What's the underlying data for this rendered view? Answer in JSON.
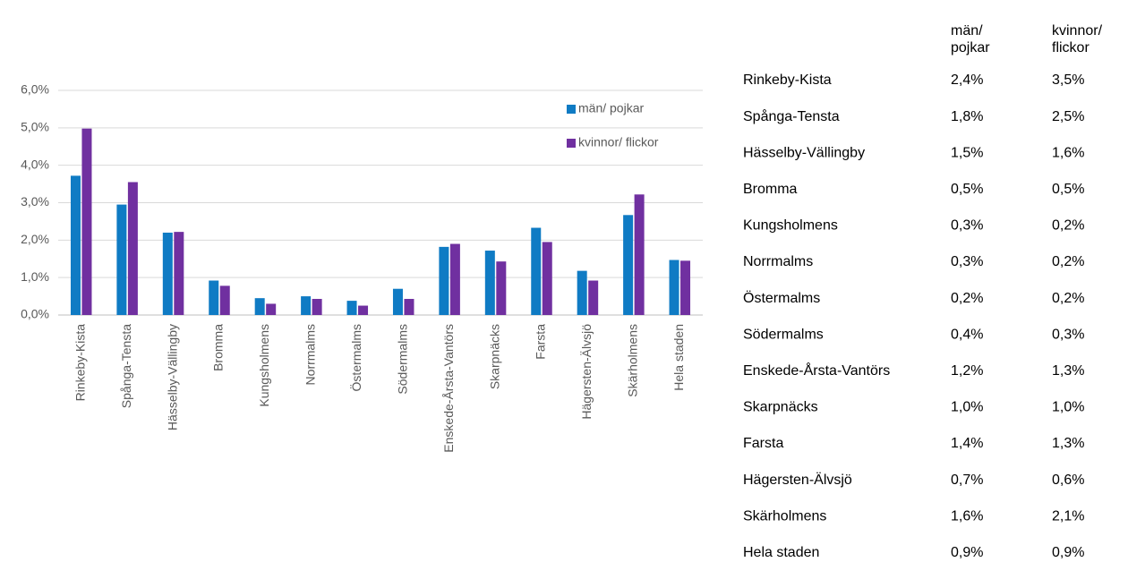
{
  "chart_data": {
    "type": "bar",
    "categories": [
      "Rinkeby-Kista",
      "Spånga-Tensta",
      "Hässelby-Vällingby",
      "Bromma",
      "Kungsholmens",
      "Norrmalms",
      "Östermalms",
      "Södermalms",
      "Enskede-Årsta-Vantörs",
      "Skarpnäcks",
      "Farsta",
      "Hägersten-Älvsjö",
      "Skärholmens",
      "Hela staden"
    ],
    "series": [
      {
        "name": "män/ pojkar",
        "color": "#0f7bc4",
        "values": [
          3.72,
          2.95,
          2.2,
          0.92,
          0.45,
          0.5,
          0.38,
          0.7,
          1.82,
          1.72,
          2.33,
          1.18,
          2.67,
          1.47
        ]
      },
      {
        "name": "kvinnor/ flickor",
        "color": "#7030a0",
        "values": [
          4.98,
          3.55,
          2.22,
          0.78,
          0.3,
          0.43,
          0.25,
          0.43,
          1.9,
          1.43,
          1.95,
          0.92,
          3.22,
          1.45
        ]
      }
    ],
    "ylim": [
      0,
      6
    ],
    "yticks": [
      {
        "value": 0,
        "label": "0,0%"
      },
      {
        "value": 1,
        "label": "1,0%"
      },
      {
        "value": 2,
        "label": "2,0%"
      },
      {
        "value": 3,
        "label": "3,0%"
      },
      {
        "value": 4,
        "label": "4,0%"
      },
      {
        "value": 5,
        "label": "5,0%"
      },
      {
        "value": 6,
        "label": "6,0%"
      }
    ],
    "grid": true,
    "legend": "upper right"
  },
  "table": {
    "columns": [
      [
        "män/",
        "pojkar"
      ],
      [
        "kvinnor/",
        "flickor"
      ]
    ],
    "rows": [
      [
        "Rinkeby-Kista",
        "2,4%",
        "3,5%"
      ],
      [
        "Spånga-Tensta",
        "1,8%",
        "2,5%"
      ],
      [
        "Hässelby-Vällingby",
        "1,5%",
        "1,6%"
      ],
      [
        "Bromma",
        "0,5%",
        "0,5%"
      ],
      [
        "Kungsholmens",
        "0,3%",
        "0,2%"
      ],
      [
        "Norrmalms",
        "0,3%",
        "0,2%"
      ],
      [
        "Östermalms",
        "0,2%",
        "0,2%"
      ],
      [
        "Södermalms",
        "0,4%",
        "0,3%"
      ],
      [
        "Enskede-Årsta-Vantörs",
        "1,2%",
        "1,3%"
      ],
      [
        "Skarpnäcks",
        "1,0%",
        "1,0%"
      ],
      [
        "Farsta",
        "1,4%",
        "1,3%"
      ],
      [
        "Hägersten-Älvsjö",
        "0,7%",
        "0,6%"
      ],
      [
        "Skärholmens",
        "1,6%",
        "2,1%"
      ],
      [
        "Hela staden",
        "0,9%",
        "0,9%"
      ]
    ]
  }
}
